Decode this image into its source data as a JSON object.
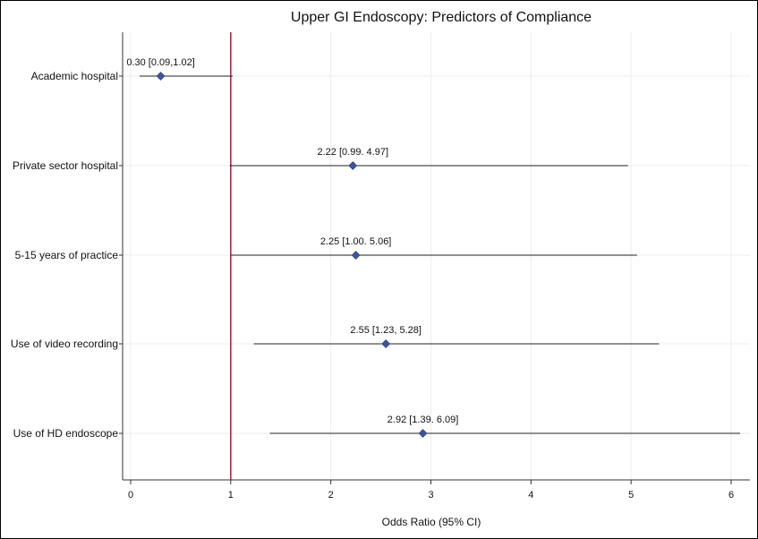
{
  "chart_data": {
    "type": "forest",
    "title": "Upper GI Endoscopy: Predictors of Compliance",
    "xlabel": "Odds Ratio (95% CI)",
    "ylabel": "",
    "xlim": [
      0,
      6
    ],
    "xticks": [
      "0",
      "1",
      "2",
      "3",
      "4",
      "5",
      "6"
    ],
    "reference_line": 1,
    "reference_color": "#b5133a",
    "marker_color": "#3a55a0",
    "grid": true,
    "rows": [
      {
        "label": "Academic hospital",
        "or": 0.3,
        "lo": 0.09,
        "hi": 1.02,
        "text": "0.30 [0.09,1.02]"
      },
      {
        "label": "Private sector hospital",
        "or": 2.22,
        "lo": 0.99,
        "hi": 4.97,
        "text": "2.22 [0.99. 4.97]"
      },
      {
        "label": "5-15 years of practice",
        "or": 2.25,
        "lo": 1.0,
        "hi": 5.06,
        "text": "2.25 [1.00. 5.06]"
      },
      {
        "label": "Use of video recording",
        "or": 2.55,
        "lo": 1.23,
        "hi": 5.28,
        "text": "2.55 [1.23, 5.28]"
      },
      {
        "label": "Use of HD endoscope",
        "or": 2.92,
        "lo": 1.39,
        "hi": 6.09,
        "text": "2.92 [1.39. 6.09]"
      }
    ]
  }
}
